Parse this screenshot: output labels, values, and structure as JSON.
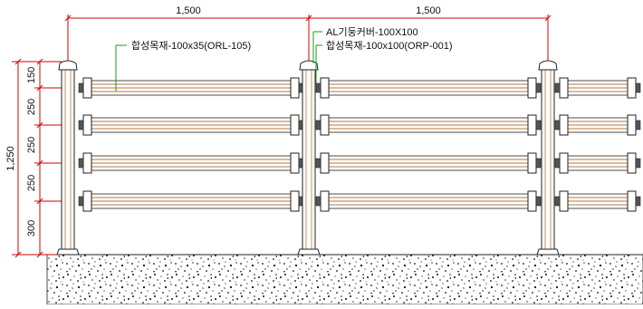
{
  "dimensions": {
    "span_left": "1,500",
    "span_right": "1,500",
    "total_height": "1,250",
    "segments": [
      "150",
      "250",
      "250",
      "250",
      "300"
    ]
  },
  "labels": {
    "rail": "합성목재-100x35(ORL-105)",
    "post_cover": "AL기둥커버-100X100",
    "post": "합성목재-100x100(ORP-001)"
  },
  "colors": {
    "dimension_line": "#d40000",
    "leader": "#1a9a1a",
    "rail_line": "#b07a40",
    "outline": "#222222"
  }
}
